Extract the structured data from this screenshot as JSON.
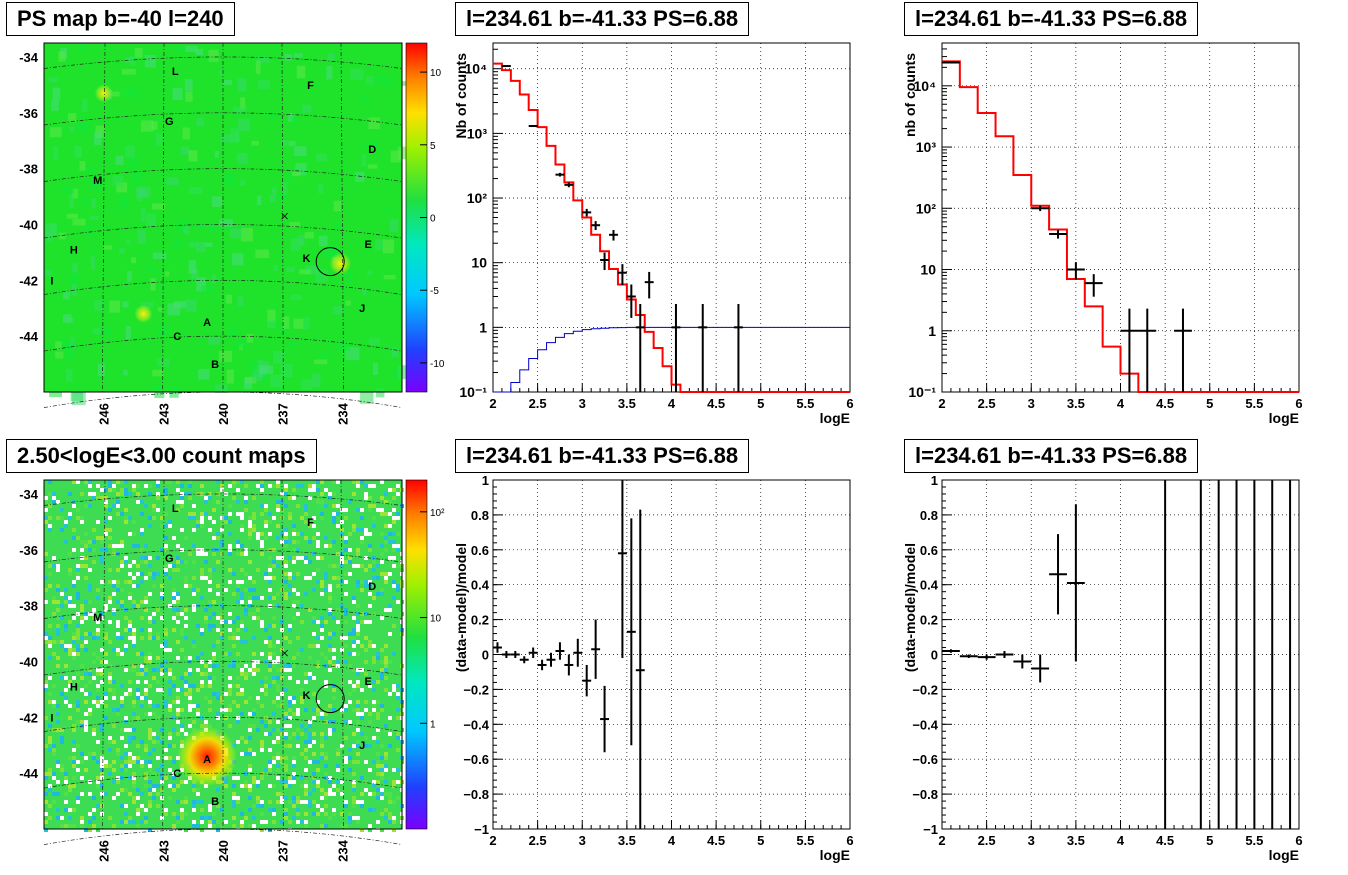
{
  "panels": [
    {
      "id": "p1",
      "title": "PS map b=-40 l=240",
      "kind": "map",
      "map_style": "ps",
      "xticks": [
        "246",
        "243",
        "240",
        "237",
        "234"
      ],
      "yticks": [
        "-34",
        "-36",
        "-38",
        "-40",
        "-42",
        "-44"
      ],
      "colorbar_ticks": [
        "10",
        "5",
        "0",
        "-5",
        "-10"
      ],
      "labels": [
        "L",
        "F",
        "G",
        "D",
        "M",
        "H",
        "E",
        "K",
        "I",
        "J",
        "A",
        "C",
        "B"
      ]
    },
    {
      "id": "p2",
      "title": "l=234.61 b=-41.33 PS=6.88",
      "kind": "spectrum_log",
      "ylabel": "Nb of counts",
      "xlabel": "logE"
    },
    {
      "id": "p3",
      "title": "l=234.61 b=-41.33 PS=6.88",
      "kind": "spectrum_log",
      "ylabel": "nb of counts",
      "xlabel": "logE"
    },
    {
      "id": "p4",
      "title": "2.50<logE<3.00 count maps",
      "kind": "map",
      "map_style": "counts",
      "xticks": [
        "246",
        "243",
        "240",
        "237",
        "234"
      ],
      "yticks": [
        "-34",
        "-36",
        "-38",
        "-40",
        "-42",
        "-44"
      ],
      "colorbar_ticks": [
        "10²",
        "10",
        "1"
      ],
      "labels": [
        "L",
        "F",
        "G",
        "D",
        "M",
        "H",
        "E",
        "K",
        "I",
        "J",
        "A",
        "C",
        "B"
      ]
    },
    {
      "id": "p5",
      "title": "l=234.61 b=-41.33 PS=6.88",
      "kind": "residual",
      "ylabel": "(data-model)/model",
      "xlabel": "logE"
    },
    {
      "id": "p6",
      "title": "l=234.61 b=-41.33 PS=6.88",
      "kind": "residual",
      "ylabel": "(data-model)/model",
      "xlabel": "logE"
    }
  ],
  "colors": {
    "model": "#ff0000",
    "background_model": "#0000cc",
    "data": "#000000",
    "ps_map_bg": "#1fe32a",
    "counts_map_bg": "#3ddc52"
  },
  "chart_data": [
    {
      "type": "heatmap",
      "panel": "p1",
      "title": "PS map b=-40 l=240",
      "x_axis": "galactic longitude (deg)",
      "y_axis": "galactic latitude (deg)",
      "xlim": [
        249,
        231
      ],
      "ylim": [
        -46,
        -33.5
      ],
      "colorbar_range": [
        -12,
        12
      ],
      "sources": [
        {
          "label": "L",
          "l": 242.4,
          "b": -34.5
        },
        {
          "label": "F",
          "l": 235.6,
          "b": -35.0
        },
        {
          "label": "G",
          "l": 242.7,
          "b": -36.3
        },
        {
          "label": "D",
          "l": 232.5,
          "b": -37.3
        },
        {
          "label": "M",
          "l": 246.3,
          "b": -38.4
        },
        {
          "label": "H",
          "l": 247.5,
          "b": -40.9
        },
        {
          "label": "E",
          "l": 232.7,
          "b": -40.7
        },
        {
          "label": "K",
          "l": 235.8,
          "b": -41.2
        },
        {
          "label": "I",
          "l": 248.6,
          "b": -42.0
        },
        {
          "label": "J",
          "l": 233.0,
          "b": -43.0
        },
        {
          "label": "A",
          "l": 240.8,
          "b": -43.5
        },
        {
          "label": "C",
          "l": 242.3,
          "b": -44.0
        },
        {
          "label": "B",
          "l": 240.4,
          "b": -45.0
        }
      ],
      "candidate": {
        "l": 234.61,
        "b": -41.33
      },
      "hotspots": [
        {
          "l": 234.1,
          "b": -41.4,
          "value": 6
        },
        {
          "l": 246.0,
          "b": -35.3,
          "value": 3
        },
        {
          "l": 244.0,
          "b": -43.2,
          "value": 2
        }
      ]
    },
    {
      "type": "line",
      "panel": "p2",
      "title": "l=234.61 b=-41.33 PS=6.88",
      "yscale": "log",
      "xlabel": "logE",
      "ylabel": "Nb of counts",
      "xlim": [
        2,
        6
      ],
      "ylim": [
        0.1,
        25000
      ],
      "series": [
        {
          "style": "step",
          "edges": [
            2.0,
            2.1,
            2.2,
            2.3,
            2.4,
            2.5,
            2.6,
            2.7,
            2.8,
            2.9,
            3.0,
            3.1,
            3.2,
            3.3,
            3.4,
            3.5,
            3.6,
            3.7,
            3.8,
            3.9,
            4.0,
            4.1,
            6.0
          ],
          "values": [
            12000,
            9500,
            6500,
            4000,
            2300,
            1250,
            640,
            330,
            175,
            92,
            50,
            27,
            15,
            8,
            4.6,
            2.7,
            1.55,
            0.85,
            0.48,
            0.25,
            0.13,
            0.1
          ]
        },
        {
          "style": "step",
          "edges": [
            2.0,
            2.1,
            2.2,
            2.3,
            2.4,
            2.5,
            2.6,
            2.7,
            2.8,
            2.9,
            3.0,
            3.1,
            3.2,
            3.3,
            3.4,
            3.5,
            3.6,
            3.7,
            6.0
          ],
          "values": [
            0.05,
            0.09,
            0.14,
            0.22,
            0.33,
            0.45,
            0.58,
            0.7,
            0.8,
            0.87,
            0.92,
            0.95,
            0.97,
            0.985,
            0.99,
            1.0,
            1.0,
            1.0
          ]
        },
        {
          "style": "errorbar",
          "x": [
            2.15,
            2.45,
            2.75,
            2.85,
            3.05,
            3.15,
            3.25,
            3.35,
            3.45,
            3.55,
            3.65,
            3.75,
            4.05,
            4.35,
            4.75
          ],
          "y": [
            11000,
            1300,
            230,
            160,
            60,
            38,
            11,
            27,
            7,
            3,
            1,
            5,
            1,
            1,
            1
          ],
          "y_lo": [
            10790,
            1260,
            215,
            147,
            52,
            32,
            7.7,
            22,
            4.5,
            1.4,
            0.1,
            2.8,
            0.1,
            0.1,
            0.1
          ],
          "y_hi": [
            11210,
            1340,
            245,
            173,
            68,
            44,
            14.3,
            32,
            9.5,
            4.6,
            2.3,
            7.2,
            2.3,
            2.3,
            2.3
          ],
          "x_halfwidth": [
            0.05,
            0.05,
            0.05,
            0.05,
            0.05,
            0.05,
            0.05,
            0.05,
            0.05,
            0.05,
            0.05,
            0.05,
            0.05,
            0.05,
            0.05
          ]
        }
      ]
    },
    {
      "type": "line",
      "panel": "p3",
      "title": "l=234.61 b=-41.33 PS=6.88",
      "yscale": "log",
      "xlabel": "logE",
      "ylabel": "nb of counts",
      "xlim": [
        2,
        6
      ],
      "ylim": [
        0.1,
        50000
      ],
      "series": [
        {
          "style": "step",
          "edges": [
            2.0,
            2.2,
            2.4,
            2.6,
            2.8,
            3.0,
            3.2,
            3.4,
            3.6,
            3.8,
            4.0,
            4.2,
            6.0
          ],
          "values": [
            25000,
            9500,
            3600,
            1500,
            350,
            110,
            45,
            7,
            2.5,
            0.55,
            0.2,
            0.1
          ]
        },
        {
          "style": "errorbar",
          "x": [
            2.1,
            3.1,
            3.3,
            3.5,
            3.7,
            4.1,
            4.3,
            4.7
          ],
          "y": [
            24000,
            100,
            38,
            10,
            6,
            1,
            1,
            1
          ],
          "y_lo": [
            23690,
            90,
            32,
            6.9,
            3.6,
            0.1,
            0.1,
            0.1
          ],
          "y_hi": [
            24310,
            110,
            44,
            13.2,
            8.4,
            2.3,
            2.3,
            2.3
          ],
          "x_halfwidth": [
            0.1,
            0.1,
            0.1,
            0.1,
            0.1,
            0.1,
            0.1,
            0.1
          ]
        }
      ]
    },
    {
      "type": "heatmap",
      "panel": "p4",
      "title": "2.50<logE<3.00 count maps",
      "x_axis": "galactic longitude (deg)",
      "y_axis": "galactic latitude (deg)",
      "xlim": [
        249,
        231
      ],
      "ylim": [
        -46,
        -33.5
      ],
      "colorbar_range": [
        0.1,
        200
      ],
      "colorbar_scale": "log",
      "candidate": {
        "l": 234.61,
        "b": -41.33
      },
      "hotspots": [
        {
          "l": 240.8,
          "b": -43.4,
          "value": 150
        }
      ]
    },
    {
      "type": "scatter",
      "panel": "p5",
      "title": "l=234.61 b=-41.33 PS=6.88",
      "xlabel": "logE",
      "ylabel": "(data-model)/model",
      "xlim": [
        2,
        6
      ],
      "ylim": [
        -1,
        1
      ],
      "x": [
        2.05,
        2.15,
        2.25,
        2.35,
        2.45,
        2.55,
        2.65,
        2.75,
        2.85,
        2.95,
        3.05,
        3.15,
        3.25,
        3.45,
        3.55,
        3.65
      ],
      "y": [
        0.04,
        0.0,
        0.0,
        -0.03,
        0.01,
        -0.06,
        -0.03,
        0.02,
        -0.06,
        0.01,
        -0.15,
        0.03,
        -0.37,
        0.58,
        0.13,
        -0.09
      ],
      "y_err": [
        0.03,
        0.02,
        0.02,
        0.02,
        0.03,
        0.03,
        0.04,
        0.05,
        0.06,
        0.08,
        0.09,
        0.17,
        0.19,
        0.6,
        0.65,
        0.92
      ],
      "x_halfwidth": 0.05
    },
    {
      "type": "scatter",
      "panel": "p6",
      "title": "l=234.61 b=-41.33 PS=6.88",
      "xlabel": "logE",
      "ylabel": "(data-model)/model",
      "xlim": [
        2,
        6
      ],
      "ylim": [
        -1,
        1
      ],
      "x": [
        2.1,
        2.3,
        2.5,
        2.7,
        2.9,
        3.1,
        3.3,
        3.5
      ],
      "y": [
        0.02,
        -0.01,
        -0.015,
        0.0,
        -0.04,
        -0.08,
        0.46,
        0.41
      ],
      "y_err": [
        0.01,
        0.01,
        0.015,
        0.02,
        0.04,
        0.08,
        0.23,
        0.45
      ],
      "x_halfwidth": 0.1,
      "vertical_bars_x": [
        3.9,
        4.5,
        4.9,
        5.1,
        5.3,
        5.5,
        5.7,
        5.9
      ],
      "vertical_bars_low": [
        -1,
        1,
        1,
        1,
        1,
        1,
        1,
        1
      ]
    }
  ]
}
